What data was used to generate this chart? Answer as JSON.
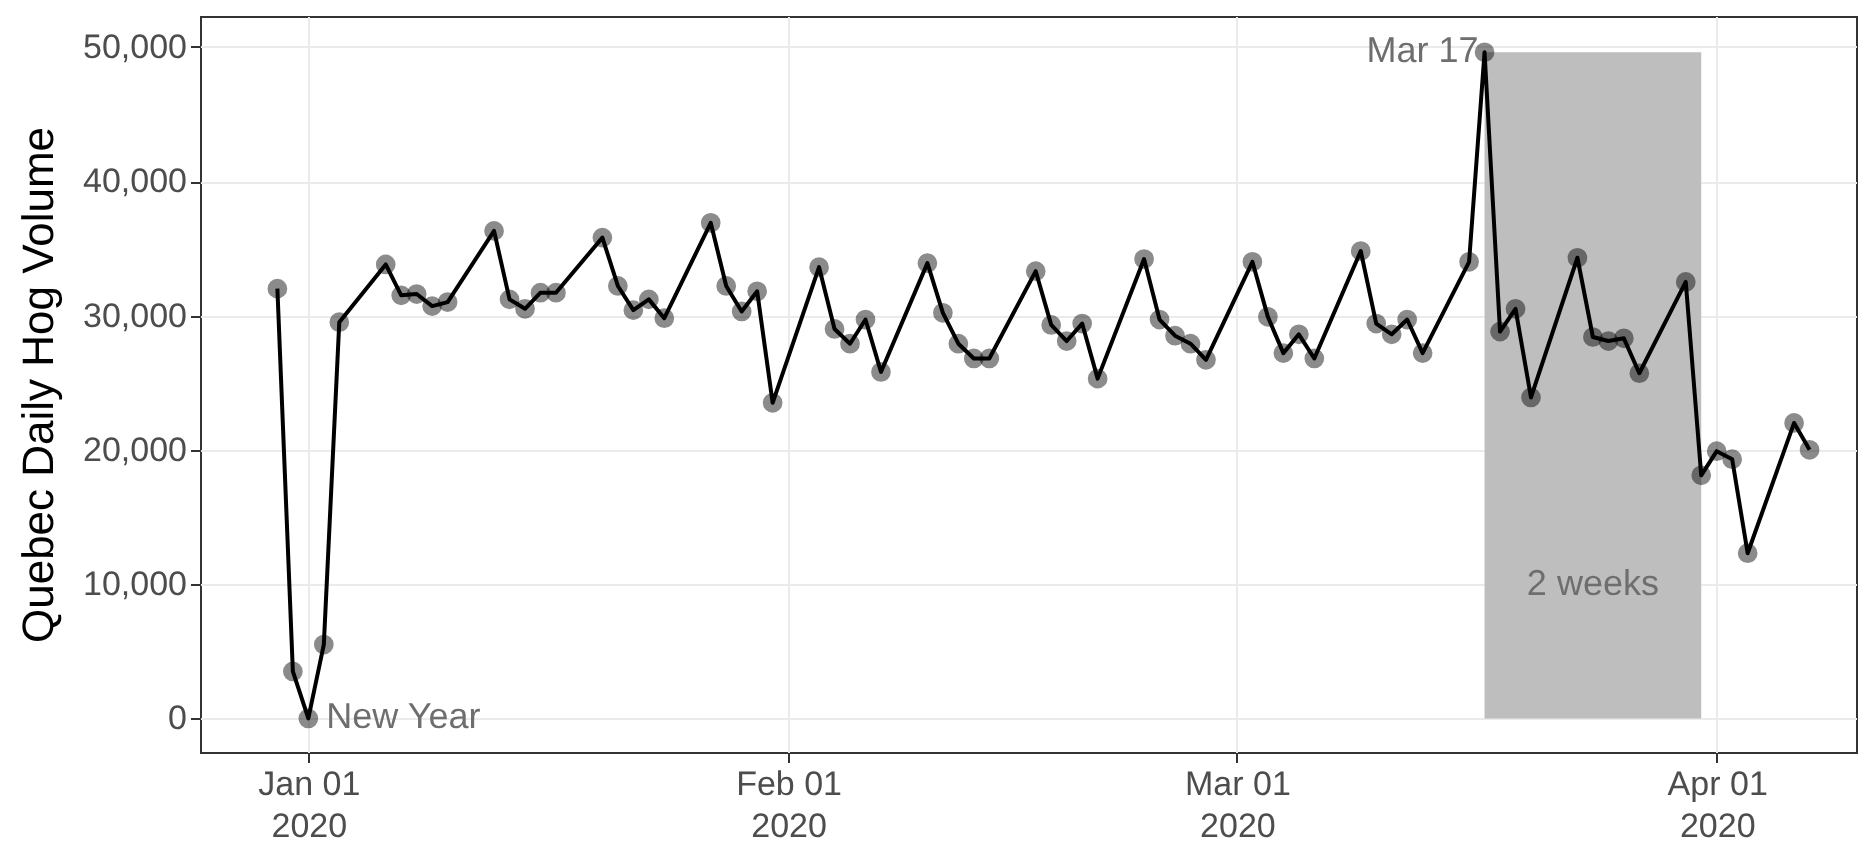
{
  "chart_data": {
    "type": "line",
    "ylabel": "Quebec Daily Hog Volume",
    "x": [
      "2019-12-30",
      "2019-12-31",
      "2020-01-01",
      "2020-01-02",
      "2020-01-03",
      "2020-01-06",
      "2020-01-07",
      "2020-01-08",
      "2020-01-09",
      "2020-01-10",
      "2020-01-13",
      "2020-01-14",
      "2020-01-15",
      "2020-01-16",
      "2020-01-17",
      "2020-01-20",
      "2020-01-21",
      "2020-01-22",
      "2020-01-23",
      "2020-01-24",
      "2020-01-27",
      "2020-01-28",
      "2020-01-29",
      "2020-01-30",
      "2020-01-31",
      "2020-02-03",
      "2020-02-04",
      "2020-02-05",
      "2020-02-06",
      "2020-02-07",
      "2020-02-10",
      "2020-02-11",
      "2020-02-12",
      "2020-02-13",
      "2020-02-14",
      "2020-02-17",
      "2020-02-18",
      "2020-02-19",
      "2020-02-20",
      "2020-02-21",
      "2020-02-24",
      "2020-02-25",
      "2020-02-26",
      "2020-02-27",
      "2020-02-28",
      "2020-03-02",
      "2020-03-03",
      "2020-03-04",
      "2020-03-05",
      "2020-03-06",
      "2020-03-09",
      "2020-03-10",
      "2020-03-11",
      "2020-03-12",
      "2020-03-13",
      "2020-03-16",
      "2020-03-17",
      "2020-03-18",
      "2020-03-19",
      "2020-03-20",
      "2020-03-23",
      "2020-03-24",
      "2020-03-25",
      "2020-03-26",
      "2020-03-27",
      "2020-03-30",
      "2020-03-31",
      "2020-04-01",
      "2020-04-02",
      "2020-04-03",
      "2020-04-06",
      "2020-04-07"
    ],
    "series": [
      {
        "color": "#000000",
        "values": [
          32000,
          3500,
          0,
          5500,
          29500,
          33800,
          31500,
          31600,
          30700,
          31000,
          36300,
          31200,
          30500,
          31700,
          31700,
          35800,
          32200,
          30400,
          31200,
          29800,
          36900,
          32200,
          30300,
          31800,
          23500,
          33600,
          29000,
          27900,
          29700,
          25800,
          33900,
          30200,
          27900,
          26800,
          26800,
          33300,
          29300,
          28100,
          29400,
          25300,
          34200,
          29700,
          28500,
          27900,
          26700,
          34000,
          29900,
          27200,
          28600,
          26800,
          34800,
          29400,
          28600,
          29700,
          27200,
          34000,
          49600,
          28800,
          30500,
          23900,
          34300,
          28400,
          28100,
          28300,
          25700,
          32500,
          18100,
          19900,
          19300,
          12300,
          22000,
          20000
        ]
      }
    ],
    "xlim": [
      "2019-12-25",
      "2020-04-10"
    ],
    "xticks": [
      {
        "value": "2020-01-01",
        "label": "Jan 01\n2020"
      },
      {
        "value": "2020-02-01",
        "label": "Feb 01\n2020"
      },
      {
        "value": "2020-03-01",
        "label": "Mar 01\n2020"
      },
      {
        "value": "2020-04-01",
        "label": "Apr 01\n2020"
      }
    ],
    "ylim": [
      -2500,
      52300
    ],
    "yticks": [
      {
        "value": 0,
        "label": "0"
      },
      {
        "value": 10000,
        "label": "10,000"
      },
      {
        "value": 20000,
        "label": "20,000"
      },
      {
        "value": 30000,
        "label": "30,000"
      },
      {
        "value": 40000,
        "label": "40,000"
      },
      {
        "value": 50000,
        "label": "50,000"
      }
    ],
    "bands": [
      {
        "axis": "x",
        "from": "2020-03-17",
        "to": "2020-03-31",
        "label": "2 weeks",
        "color": "#bebebe"
      }
    ],
    "annotations": [
      {
        "text": "New Year",
        "x": "2020-01-01",
        "y": 0
      },
      {
        "text": "Mar 17",
        "x": "2020-03-17",
        "y": 49600
      }
    ],
    "grid": true,
    "marker": "circle",
    "line_style": "solid"
  }
}
